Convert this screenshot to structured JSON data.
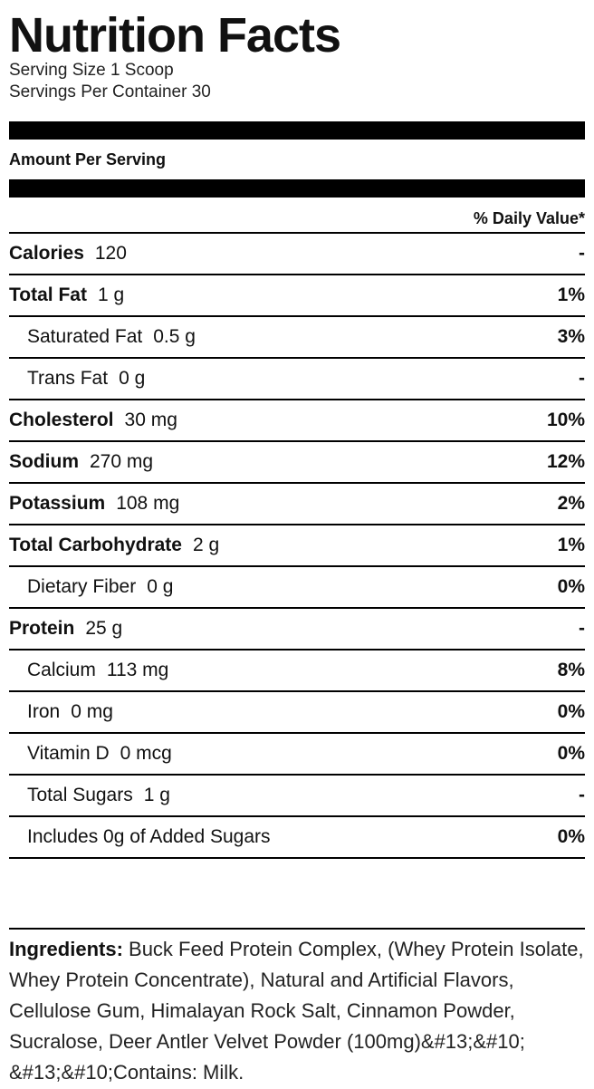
{
  "label": {
    "title": "Nutrition Facts",
    "serving_size": "Serving Size 1 Scoop",
    "servings_per_container": "Servings Per Container 30",
    "amount_per_serving": "Amount Per Serving",
    "daily_value_header": "% Daily Value*",
    "rows": [
      {
        "name": "Calories",
        "amount": "120",
        "dv": "-",
        "bold": true,
        "indent": false
      },
      {
        "name": "Total Fat",
        "amount": "1 g",
        "dv": "1%",
        "bold": true,
        "indent": false
      },
      {
        "name": "Saturated Fat",
        "amount": "0.5 g",
        "dv": "3%",
        "bold": false,
        "indent": true
      },
      {
        "name": "Trans Fat",
        "amount": "0 g",
        "dv": "-",
        "bold": false,
        "indent": true
      },
      {
        "name": "Cholesterol",
        "amount": "30 mg",
        "dv": "10%",
        "bold": true,
        "indent": false
      },
      {
        "name": "Sodium",
        "amount": "270 mg",
        "dv": "12%",
        "bold": true,
        "indent": false
      },
      {
        "name": "Potassium",
        "amount": "108 mg",
        "dv": "2%",
        "bold": true,
        "indent": false
      },
      {
        "name": "Total Carbohydrate",
        "amount": "2 g",
        "dv": "1%",
        "bold": true,
        "indent": false
      },
      {
        "name": "Dietary Fiber",
        "amount": "0 g",
        "dv": "0%",
        "bold": false,
        "indent": true
      },
      {
        "name": "Protein",
        "amount": "25 g",
        "dv": "-",
        "bold": true,
        "indent": false
      },
      {
        "name": "Calcium",
        "amount": "113 mg",
        "dv": "8%",
        "bold": false,
        "indent": true
      },
      {
        "name": "Iron",
        "amount": "0 mg",
        "dv": "0%",
        "bold": false,
        "indent": true
      },
      {
        "name": "Vitamin D",
        "amount": "0 mcg",
        "dv": "0%",
        "bold": false,
        "indent": true
      },
      {
        "name": "Total Sugars",
        "amount": "1 g",
        "dv": "-",
        "bold": false,
        "indent": true
      },
      {
        "name": "Includes 0g of Added Sugars",
        "amount": "",
        "dv": "0%",
        "bold": false,
        "indent": true
      }
    ],
    "ingredients_label": "Ingredients:",
    "ingredients_text": " Buck Feed Protein Complex, (Whey Protein Isolate, Whey Protein Concentrate), Natural and Artificial Flavors, Cellulose Gum, Himalayan Rock Salt, Cinnamon Powder, Sucralose, Deer Antler Velvet Powder (100mg)&#13;&#10; &#13;&#10;Contains: Milk."
  }
}
